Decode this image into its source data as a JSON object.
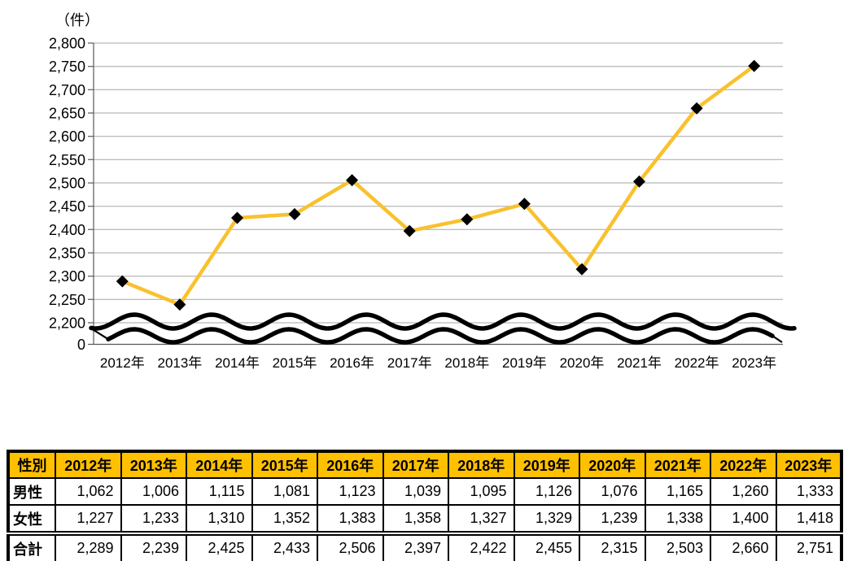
{
  "colors": {
    "accent_gold": "#FFC000",
    "line_gold": "#F9C12E",
    "marker_black": "#000000",
    "gridline_gray": "#A6A6A6",
    "axis_gray": "#595959",
    "text_black": "#000000"
  },
  "chart_data": {
    "type": "line",
    "title": "",
    "unit_label": "（件）",
    "xlabel": "",
    "ylabel": "件",
    "categories": [
      "2012年",
      "2013年",
      "2014年",
      "2015年",
      "2016年",
      "2017年",
      "2018年",
      "2019年",
      "2020年",
      "2021年",
      "2022年",
      "2023年"
    ],
    "series": [
      {
        "name": "合計",
        "values": [
          2289,
          2239,
          2425,
          2433,
          2506,
          2397,
          2422,
          2455,
          2315,
          2503,
          2660,
          2751
        ],
        "color": "#F9C12E",
        "marker": "black-diamond"
      }
    ],
    "yticks": [
      {
        "label": "2,800",
        "value": 2800
      },
      {
        "label": "2,750",
        "value": 2750
      },
      {
        "label": "2,700",
        "value": 2700
      },
      {
        "label": "2,650",
        "value": 2650
      },
      {
        "label": "2,600",
        "value": 2600
      },
      {
        "label": "2,550",
        "value": 2550
      },
      {
        "label": "2,500",
        "value": 2500
      },
      {
        "label": "2,450",
        "value": 2450
      },
      {
        "label": "2,400",
        "value": 2400
      },
      {
        "label": "2,350",
        "value": 2350
      },
      {
        "label": "2,300",
        "value": 2300
      },
      {
        "label": "2,250",
        "value": 2250
      },
      {
        "label": "2,200",
        "value": 2200
      },
      {
        "label": "0",
        "value": 0
      }
    ],
    "ylim": [
      2200,
      2800
    ],
    "axis_break": true,
    "grid": "horizontal",
    "legend": "none"
  },
  "table": {
    "columns": [
      "性別",
      "2012年",
      "2013年",
      "2014年",
      "2015年",
      "2016年",
      "2017年",
      "2018年",
      "2019年",
      "2020年",
      "2021年",
      "2022年",
      "2023年"
    ],
    "rows": [
      {
        "label": "男性",
        "values": [
          "1,062",
          "1,006",
          "1,115",
          "1,081",
          "1,123",
          "1,039",
          "1,095",
          "1,126",
          "1,076",
          "1,165",
          "1,260",
          "1,333"
        ],
        "is_total": false
      },
      {
        "label": "女性",
        "values": [
          "1,227",
          "1,233",
          "1,310",
          "1,352",
          "1,383",
          "1,358",
          "1,327",
          "1,329",
          "1,239",
          "1,338",
          "1,400",
          "1,418"
        ],
        "is_total": false
      },
      {
        "label": "合計",
        "values": [
          "2,289",
          "2,239",
          "2,425",
          "2,433",
          "2,506",
          "2,397",
          "2,422",
          "2,455",
          "2,315",
          "2,503",
          "2,660",
          "2,751"
        ],
        "is_total": true
      }
    ],
    "header_bg": "#FFC000"
  }
}
